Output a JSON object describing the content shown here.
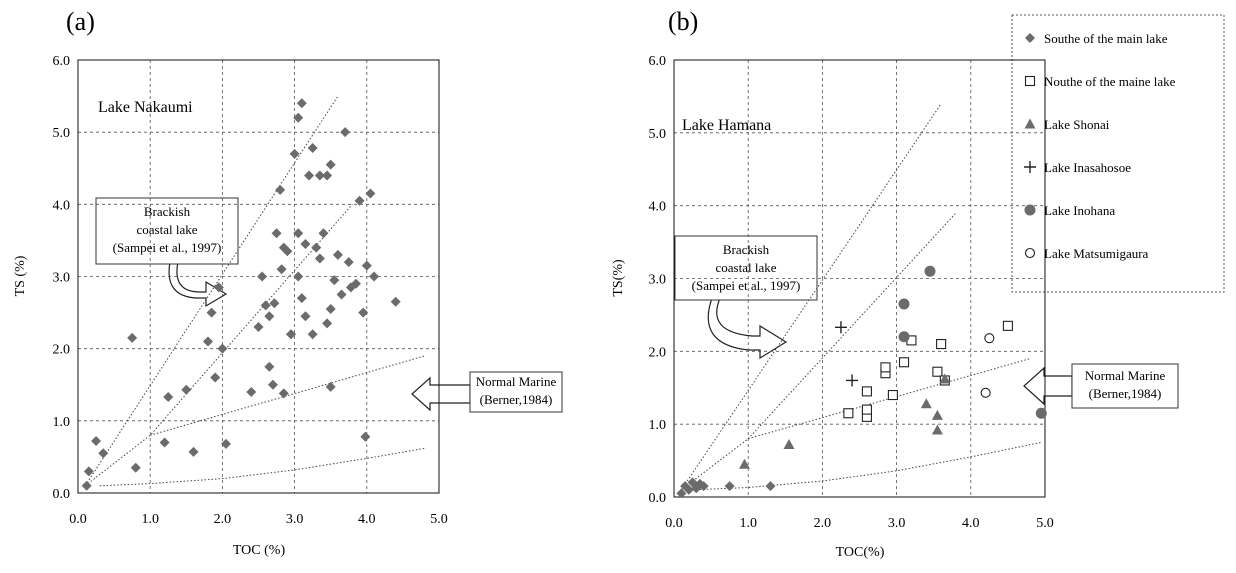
{
  "chart_data": [
    {
      "type": "scatter",
      "panel_label": "(a)",
      "site_label": "Lake Nakaumi",
      "xlabel": "TOC (%)",
      "ylabel": "TS (%)",
      "xlim": [
        0,
        5
      ],
      "ylim": [
        0,
        6
      ],
      "xticks": [
        "0.0",
        "1.0",
        "2.0",
        "3.0",
        "4.0",
        "5.0"
      ],
      "yticks": [
        "0.0",
        "1.0",
        "2.0",
        "3.0",
        "4.0",
        "5.0",
        "6.0"
      ],
      "grid": true,
      "reference_lines": [
        {
          "id": "brackish-upper",
          "points": [
            [
              0.1,
              0.1
            ],
            [
              3.6,
              5.5
            ]
          ]
        },
        {
          "id": "brackish-lower",
          "points": [
            [
              0.1,
              0.1
            ],
            [
              1.0,
              0.8
            ],
            [
              3.8,
              4.0
            ]
          ]
        },
        {
          "id": "normal-marine",
          "points": [
            [
              1.0,
              0.8
            ],
            [
              4.8,
              1.9
            ]
          ]
        },
        {
          "id": "lower-bound",
          "points": [
            [
              0.3,
              0.1
            ],
            [
              1.0,
              0.13
            ],
            [
              2.0,
              0.2
            ],
            [
              3.0,
              0.32
            ],
            [
              4.0,
              0.48
            ],
            [
              4.8,
              0.62
            ]
          ]
        }
      ],
      "annotations": [
        {
          "id": "brackish-note",
          "lines": [
            "Brackish",
            "coastal lake",
            "(Sampei et al., 1997)"
          ]
        },
        {
          "id": "marine-note",
          "lines": [
            "Normal Marine",
            "(Berner,1984)"
          ]
        }
      ],
      "series": [
        {
          "marker": "diamond",
          "color": "#6b6b6b",
          "points": [
            [
              0.12,
              0.1
            ],
            [
              0.15,
              0.3
            ],
            [
              0.25,
              0.72
            ],
            [
              0.35,
              0.55
            ],
            [
              0.75,
              2.15
            ],
            [
              0.8,
              0.35
            ],
            [
              1.2,
              0.7
            ],
            [
              1.25,
              1.33
            ],
            [
              1.5,
              1.43
            ],
            [
              1.6,
              0.57
            ],
            [
              1.8,
              2.1
            ],
            [
              1.85,
              2.5
            ],
            [
              1.9,
              1.6
            ],
            [
              1.95,
              2.85
            ],
            [
              2.0,
              2.0
            ],
            [
              2.05,
              0.68
            ],
            [
              2.4,
              1.4
            ],
            [
              2.5,
              2.3
            ],
            [
              2.55,
              3.0
            ],
            [
              2.6,
              2.6
            ],
            [
              2.65,
              1.75
            ],
            [
              2.7,
              1.5
            ],
            [
              2.72,
              2.63
            ],
            [
              2.75,
              3.6
            ],
            [
              2.8,
              4.2
            ],
            [
              2.82,
              3.1
            ],
            [
              2.85,
              3.4
            ],
            [
              2.9,
              3.35
            ],
            [
              2.95,
              2.2
            ],
            [
              3.0,
              4.7
            ],
            [
              3.05,
              3.6
            ],
            [
              3.1,
              5.4
            ],
            [
              3.05,
              5.2
            ],
            [
              3.1,
              2.7
            ],
            [
              3.15,
              3.45
            ],
            [
              3.2,
              4.4
            ],
            [
              3.25,
              4.78
            ],
            [
              3.3,
              3.4
            ],
            [
              3.35,
              4.4
            ],
            [
              3.4,
              3.6
            ],
            [
              3.45,
              4.4
            ],
            [
              3.5,
              4.55
            ],
            [
              3.55,
              2.95
            ],
            [
              3.6,
              3.3
            ],
            [
              3.7,
              5.0
            ],
            [
              3.75,
              3.2
            ],
            [
              3.78,
              2.85
            ],
            [
              3.85,
              2.9
            ],
            [
              3.9,
              4.05
            ],
            [
              3.95,
              2.5
            ],
            [
              4.0,
              3.15
            ],
            [
              4.05,
              4.15
            ],
            [
              4.1,
              3.0
            ],
            [
              4.4,
              2.65
            ],
            [
              3.98,
              0.78
            ],
            [
              3.5,
              1.47
            ],
            [
              2.85,
              1.38
            ],
            [
              2.95,
              2.2
            ],
            [
              3.05,
              3.0
            ],
            [
              3.25,
              2.2
            ],
            [
              3.5,
              2.55
            ],
            [
              3.45,
              2.35
            ],
            [
              3.35,
              3.25
            ],
            [
              2.65,
              2.45
            ],
            [
              3.15,
              2.45
            ],
            [
              3.65,
              2.75
            ]
          ]
        }
      ]
    },
    {
      "type": "scatter",
      "panel_label": "(b)",
      "site_label": "Lake Hamana",
      "xlabel": "TOC(%)",
      "ylabel": "TS(%)",
      "xlim": [
        0,
        5
      ],
      "ylim": [
        0,
        6
      ],
      "xticks": [
        "0.0",
        "1.0",
        "2.0",
        "3.0",
        "4.0",
        "5.0"
      ],
      "yticks": [
        "0.0",
        "1.0",
        "2.0",
        "3.0",
        "4.0",
        "5.0",
        "6.0"
      ],
      "grid": true,
      "legend_position": "top-right",
      "reference_lines": [
        {
          "id": "brackish-upper",
          "points": [
            [
              0.1,
              0.1
            ],
            [
              3.6,
              5.4
            ]
          ]
        },
        {
          "id": "brackish-lower",
          "points": [
            [
              0.1,
              0.1
            ],
            [
              1.0,
              0.8
            ],
            [
              3.8,
              3.9
            ]
          ]
        },
        {
          "id": "normal-marine",
          "points": [
            [
              1.0,
              0.8
            ],
            [
              4.8,
              1.9
            ]
          ]
        },
        {
          "id": "lower-bound",
          "points": [
            [
              0.3,
              0.1
            ],
            [
              1.0,
              0.13
            ],
            [
              2.0,
              0.22
            ],
            [
              3.0,
              0.36
            ],
            [
              4.0,
              0.55
            ],
            [
              4.95,
              0.75
            ]
          ]
        }
      ],
      "annotations": [
        {
          "id": "brackish-note",
          "lines": [
            "Brackish",
            "coastal lake",
            "(Sampei et al., 1997)"
          ]
        },
        {
          "id": "marine-note",
          "lines": [
            "Normal Marine",
            "(Berner,1984)"
          ]
        }
      ],
      "series": [
        {
          "name": "Southe of the main lake",
          "marker": "diamond",
          "color": "#6b6b6b",
          "points": [
            [
              0.1,
              0.05
            ],
            [
              0.15,
              0.15
            ],
            [
              0.2,
              0.1
            ],
            [
              0.25,
              0.2
            ],
            [
              0.3,
              0.12
            ],
            [
              0.35,
              0.18
            ],
            [
              0.4,
              0.15
            ],
            [
              0.75,
              0.15
            ],
            [
              1.3,
              0.15
            ]
          ]
        },
        {
          "name": "Nouthe of the maine lake",
          "marker": "square-open",
          "color": "#222222",
          "points": [
            [
              2.35,
              1.15
            ],
            [
              2.6,
              1.1
            ],
            [
              2.6,
              1.45
            ],
            [
              2.6,
              1.2
            ],
            [
              2.85,
              1.7
            ],
            [
              2.85,
              1.78
            ],
            [
              2.95,
              1.4
            ],
            [
              3.1,
              1.85
            ],
            [
              3.2,
              2.15
            ],
            [
              3.55,
              1.72
            ],
            [
              3.6,
              2.1
            ],
            [
              3.65,
              1.6
            ],
            [
              4.5,
              2.35
            ]
          ]
        },
        {
          "name": "Lake Shonai",
          "marker": "triangle",
          "color": "#6b6b6b",
          "points": [
            [
              0.95,
              0.45
            ],
            [
              1.55,
              0.72
            ],
            [
              3.4,
              1.28
            ],
            [
              3.55,
              1.12
            ],
            [
              3.55,
              0.92
            ],
            [
              3.65,
              1.62
            ]
          ]
        },
        {
          "name": "Lake Inasahosoe",
          "marker": "plus",
          "color": "#222222",
          "points": [
            [
              2.25,
              2.33
            ],
            [
              2.4,
              1.6
            ]
          ]
        },
        {
          "name": "Lake Inohana",
          "marker": "circle",
          "color": "#6b6b6b",
          "points": [
            [
              3.1,
              2.65
            ],
            [
              3.1,
              2.2
            ],
            [
              3.45,
              3.1
            ],
            [
              4.95,
              1.15
            ]
          ]
        },
        {
          "name": "Lake Matsumigaura",
          "marker": "circle-open",
          "color": "#222222",
          "points": [
            [
              4.2,
              1.43
            ],
            [
              4.25,
              2.18
            ]
          ]
        }
      ]
    }
  ]
}
